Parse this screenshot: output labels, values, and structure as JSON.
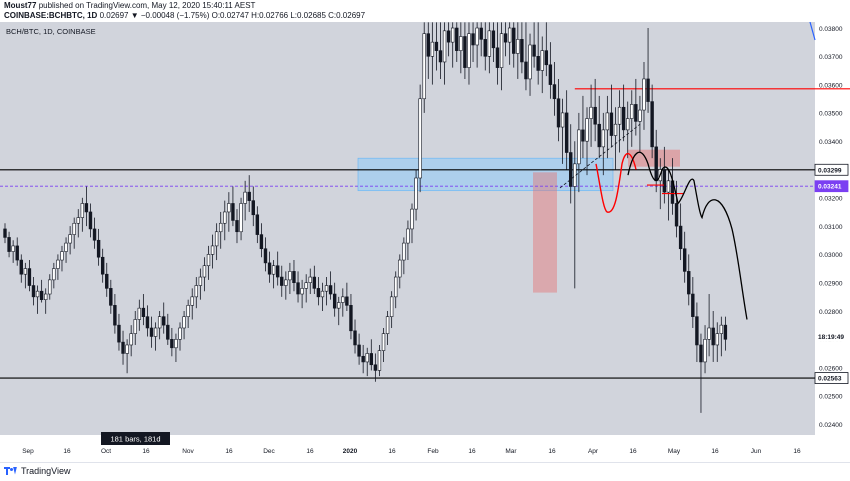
{
  "header": {
    "publisher": "Moust77",
    "published_text": "published on TradingView.com, May 12, 2020 15:40:11 AEST",
    "symbol": "COINBASE:BCHBTC, 1D",
    "change": "0.02697 ▼ −0.00048 (−1.75%)",
    "ohlc": "O:0.02747 H:0.02766 L:0.02685 C:0.02697"
  },
  "chart_data": {
    "type": "candlestick",
    "symbol_label": "BCH/BTC, 1D, COINBASE",
    "y_ticks": [
      "0.03800",
      "0.03700",
      "0.03600",
      "0.03500",
      "0.03400",
      "0.03300",
      "0.03200",
      "0.03100",
      "0.03000",
      "0.02900",
      "0.02800",
      "0.02700",
      "0.02600",
      "0.02500",
      "0.02400"
    ],
    "y_range": [
      0.0234,
      0.0382
    ],
    "x_ticks": [
      "Sep",
      "16",
      "Oct",
      "16",
      "Nov",
      "16",
      "Dec",
      "16",
      "2020",
      "16",
      "Feb",
      "16",
      "Mar",
      "16",
      "Apr",
      "16",
      "May",
      "16",
      "Jun",
      "16"
    ],
    "price_labels": [
      {
        "text": "0.03299",
        "value": 0.03299,
        "kind": "level"
      },
      {
        "text": "0.03241",
        "value": 0.03241,
        "kind": "dashed"
      },
      {
        "text": "18:19:49",
        "value": 0.0271,
        "kind": "timer"
      },
      {
        "text": "0.02563",
        "value": 0.02563,
        "kind": "level"
      }
    ],
    "horizontal_lines": [
      {
        "value": 0.03299,
        "color": "#000000",
        "style": "solid"
      },
      {
        "value": 0.03241,
        "color": "#7b3ff2",
        "style": "dashed"
      },
      {
        "value": 0.02563,
        "color": "#000000",
        "style": "solid"
      },
      {
        "value": 0.03585,
        "color": "#ff0000",
        "style": "solid",
        "from_day": 140,
        "to_day": 249
      }
    ],
    "range_label": "181 bars, 181d",
    "candles_ohlc": [
      [
        0.0309,
        0.0311,
        0.0304,
        0.0306
      ],
      [
        0.0306,
        0.0308,
        0.0299,
        0.0301
      ],
      [
        0.0301,
        0.0305,
        0.0297,
        0.0303
      ],
      [
        0.0303,
        0.0306,
        0.0296,
        0.0298
      ],
      [
        0.0298,
        0.03,
        0.029,
        0.0293
      ],
      [
        0.0293,
        0.0297,
        0.0288,
        0.0295
      ],
      [
        0.0295,
        0.0298,
        0.0287,
        0.0289
      ],
      [
        0.0289,
        0.0292,
        0.0282,
        0.0285
      ],
      [
        0.0285,
        0.0289,
        0.0279,
        0.0287
      ],
      [
        0.0287,
        0.0291,
        0.0283,
        0.0284
      ],
      [
        0.0284,
        0.0288,
        0.0279,
        0.0286
      ],
      [
        0.0286,
        0.0293,
        0.0284,
        0.0291
      ],
      [
        0.0291,
        0.0297,
        0.0288,
        0.0295
      ],
      [
        0.0295,
        0.03,
        0.0291,
        0.0298
      ],
      [
        0.0298,
        0.0303,
        0.0294,
        0.0301
      ],
      [
        0.0301,
        0.0306,
        0.0297,
        0.0304
      ],
      [
        0.0304,
        0.031,
        0.03,
        0.0307
      ],
      [
        0.0307,
        0.0313,
        0.0302,
        0.0311
      ],
      [
        0.0311,
        0.0316,
        0.0306,
        0.0313
      ],
      [
        0.0313,
        0.032,
        0.0308,
        0.0318
      ],
      [
        0.0318,
        0.0324,
        0.031,
        0.0315
      ],
      [
        0.0315,
        0.0318,
        0.0306,
        0.0309
      ],
      [
        0.0309,
        0.0313,
        0.0302,
        0.0305
      ],
      [
        0.0305,
        0.0309,
        0.0296,
        0.0299
      ],
      [
        0.0299,
        0.0302,
        0.029,
        0.0293
      ],
      [
        0.0293,
        0.0297,
        0.0285,
        0.0288
      ],
      [
        0.0288,
        0.0291,
        0.0279,
        0.0282
      ],
      [
        0.0282,
        0.0286,
        0.0272,
        0.0275
      ],
      [
        0.0275,
        0.0279,
        0.0266,
        0.0269
      ],
      [
        0.0269,
        0.0273,
        0.0261,
        0.0265
      ],
      [
        0.0265,
        0.027,
        0.0258,
        0.0268
      ],
      [
        0.0268,
        0.0275,
        0.0264,
        0.0272
      ],
      [
        0.0272,
        0.028,
        0.0268,
        0.0277
      ],
      [
        0.0277,
        0.0284,
        0.0273,
        0.0281
      ],
      [
        0.0281,
        0.0286,
        0.0275,
        0.0278
      ],
      [
        0.0278,
        0.0282,
        0.0271,
        0.0274
      ],
      [
        0.0274,
        0.0278,
        0.0267,
        0.0271
      ],
      [
        0.0271,
        0.0276,
        0.0266,
        0.0274
      ],
      [
        0.0274,
        0.028,
        0.027,
        0.0278
      ],
      [
        0.0278,
        0.0283,
        0.0272,
        0.0275
      ],
      [
        0.0275,
        0.0279,
        0.0268,
        0.027
      ],
      [
        0.027,
        0.0274,
        0.0264,
        0.0267
      ],
      [
        0.0267,
        0.0272,
        0.0262,
        0.027
      ],
      [
        0.027,
        0.0276,
        0.0266,
        0.0274
      ],
      [
        0.0274,
        0.028,
        0.027,
        0.0278
      ],
      [
        0.0278,
        0.0284,
        0.0274,
        0.0282
      ],
      [
        0.0282,
        0.0288,
        0.0277,
        0.0285
      ],
      [
        0.0285,
        0.0292,
        0.0281,
        0.0289
      ],
      [
        0.0289,
        0.0295,
        0.0284,
        0.0292
      ],
      [
        0.0292,
        0.0299,
        0.0287,
        0.0296
      ],
      [
        0.0296,
        0.0303,
        0.0291,
        0.03
      ],
      [
        0.03,
        0.0307,
        0.0295,
        0.0303
      ],
      [
        0.0303,
        0.0311,
        0.0298,
        0.0308
      ],
      [
        0.0308,
        0.0315,
        0.0302,
        0.0311
      ],
      [
        0.0311,
        0.0319,
        0.0305,
        0.0315
      ],
      [
        0.0315,
        0.0322,
        0.0308,
        0.0318
      ],
      [
        0.0318,
        0.0324,
        0.031,
        0.0312
      ],
      [
        0.0312,
        0.0316,
        0.0304,
        0.0308
      ],
      [
        0.0308,
        0.032,
        0.0305,
        0.0318
      ],
      [
        0.0318,
        0.0326,
        0.0312,
        0.0322
      ],
      [
        0.0322,
        0.0328,
        0.0315,
        0.0319
      ],
      [
        0.0319,
        0.0324,
        0.031,
        0.0314
      ],
      [
        0.0314,
        0.0317,
        0.0304,
        0.0307
      ],
      [
        0.0307,
        0.0311,
        0.0299,
        0.0302
      ],
      [
        0.0302,
        0.0306,
        0.0294,
        0.0297
      ],
      [
        0.0297,
        0.0301,
        0.029,
        0.0293
      ],
      [
        0.0293,
        0.0298,
        0.0288,
        0.0296
      ],
      [
        0.0296,
        0.0301,
        0.0289,
        0.0292
      ],
      [
        0.0292,
        0.0296,
        0.0285,
        0.0289
      ],
      [
        0.0289,
        0.0294,
        0.0284,
        0.0291
      ],
      [
        0.0291,
        0.0297,
        0.0286,
        0.0294
      ],
      [
        0.0294,
        0.0298,
        0.0287,
        0.029
      ],
      [
        0.029,
        0.0294,
        0.0283,
        0.0286
      ],
      [
        0.0286,
        0.0291,
        0.0281,
        0.0288
      ],
      [
        0.0288,
        0.0293,
        0.0283,
        0.029
      ],
      [
        0.029,
        0.0295,
        0.0286,
        0.0292
      ],
      [
        0.0292,
        0.0296,
        0.0286,
        0.0288
      ],
      [
        0.0288,
        0.0292,
        0.0282,
        0.0285
      ],
      [
        0.0285,
        0.029,
        0.028,
        0.0287
      ],
      [
        0.0287,
        0.0292,
        0.0282,
        0.0289
      ],
      [
        0.0289,
        0.0294,
        0.0284,
        0.0286
      ],
      [
        0.0286,
        0.029,
        0.0278,
        0.0281
      ],
      [
        0.0281,
        0.0285,
        0.0275,
        0.0283
      ],
      [
        0.0283,
        0.0288,
        0.0278,
        0.0285
      ],
      [
        0.0285,
        0.029,
        0.028,
        0.0282
      ],
      [
        0.0282,
        0.0286,
        0.027,
        0.0273
      ],
      [
        0.0273,
        0.0277,
        0.0265,
        0.0268
      ],
      [
        0.0268,
        0.0272,
        0.0261,
        0.0264
      ],
      [
        0.0264,
        0.0268,
        0.0258,
        0.0262
      ],
      [
        0.0262,
        0.0267,
        0.0257,
        0.0265
      ],
      [
        0.0265,
        0.027,
        0.0259,
        0.0261
      ],
      [
        0.0261,
        0.0265,
        0.0255,
        0.0259
      ],
      [
        0.0259,
        0.0268,
        0.0257,
        0.0266
      ],
      [
        0.0266,
        0.0274,
        0.0262,
        0.0272
      ],
      [
        0.0272,
        0.028,
        0.0268,
        0.0278
      ],
      [
        0.0278,
        0.0287,
        0.0274,
        0.0285
      ],
      [
        0.0285,
        0.0294,
        0.0281,
        0.0292
      ],
      [
        0.0292,
        0.03,
        0.0288,
        0.0298
      ],
      [
        0.0298,
        0.0306,
        0.0293,
        0.0304
      ],
      [
        0.0304,
        0.0312,
        0.0298,
        0.0309
      ],
      [
        0.0309,
        0.0318,
        0.0304,
        0.0316
      ],
      [
        0.0316,
        0.033,
        0.0312,
        0.0327
      ],
      [
        0.0327,
        0.036,
        0.0322,
        0.0355
      ],
      [
        0.0355,
        0.0382,
        0.035,
        0.0378
      ],
      [
        0.0378,
        0.0382,
        0.0362,
        0.037
      ],
      [
        0.037,
        0.0382,
        0.036,
        0.0375
      ],
      [
        0.0375,
        0.0382,
        0.0365,
        0.0372
      ],
      [
        0.0372,
        0.0382,
        0.0362,
        0.0368
      ],
      [
        0.0368,
        0.0382,
        0.036,
        0.0379
      ],
      [
        0.0379,
        0.0382,
        0.037,
        0.0375
      ],
      [
        0.0375,
        0.0382,
        0.0366,
        0.038
      ],
      [
        0.038,
        0.0382,
        0.0368,
        0.0372
      ],
      [
        0.0372,
        0.0382,
        0.0364,
        0.0377
      ],
      [
        0.0377,
        0.0382,
        0.0362,
        0.0366
      ],
      [
        0.0366,
        0.0382,
        0.036,
        0.0378
      ],
      [
        0.0378,
        0.0382,
        0.0368,
        0.0374
      ],
      [
        0.0374,
        0.0382,
        0.0366,
        0.038
      ],
      [
        0.038,
        0.0382,
        0.037,
        0.0376
      ],
      [
        0.0376,
        0.0382,
        0.0365,
        0.037
      ],
      [
        0.037,
        0.0382,
        0.0364,
        0.0379
      ],
      [
        0.0379,
        0.0382,
        0.0368,
        0.0373
      ],
      [
        0.0373,
        0.0382,
        0.036,
        0.0366
      ],
      [
        0.0366,
        0.0382,
        0.0358,
        0.0378
      ],
      [
        0.0378,
        0.0382,
        0.037,
        0.0375
      ],
      [
        0.0375,
        0.0382,
        0.0367,
        0.038
      ],
      [
        0.038,
        0.0382,
        0.0366,
        0.0371
      ],
      [
        0.0371,
        0.0382,
        0.0362,
        0.0376
      ],
      [
        0.0376,
        0.0382,
        0.0364,
        0.0368
      ],
      [
        0.0368,
        0.0382,
        0.0358,
        0.0362
      ],
      [
        0.0362,
        0.0378,
        0.0356,
        0.0374
      ],
      [
        0.0374,
        0.0382,
        0.0366,
        0.037
      ],
      [
        0.037,
        0.0382,
        0.036,
        0.0365
      ],
      [
        0.0365,
        0.0377,
        0.0357,
        0.0372
      ],
      [
        0.0372,
        0.0382,
        0.0363,
        0.0367
      ],
      [
        0.0367,
        0.0375,
        0.0355,
        0.036
      ],
      [
        0.036,
        0.0368,
        0.0349,
        0.0355
      ],
      [
        0.0355,
        0.0362,
        0.034,
        0.0345
      ],
      [
        0.0345,
        0.0355,
        0.0332,
        0.035
      ],
      [
        0.035,
        0.0358,
        0.033,
        0.0336
      ],
      [
        0.0336,
        0.0346,
        0.0318,
        0.0324
      ],
      [
        0.0324,
        0.034,
        0.0288,
        0.0332
      ],
      [
        0.0332,
        0.035,
        0.0322,
        0.0344
      ],
      [
        0.0344,
        0.0356,
        0.0334,
        0.034
      ],
      [
        0.034,
        0.0352,
        0.0328,
        0.0348
      ],
      [
        0.0348,
        0.036,
        0.0338,
        0.0352
      ],
      [
        0.0352,
        0.0362,
        0.034,
        0.0346
      ],
      [
        0.0346,
        0.0356,
        0.0334,
        0.0338
      ],
      [
        0.0338,
        0.035,
        0.0328,
        0.0344
      ],
      [
        0.0344,
        0.0356,
        0.0334,
        0.035
      ],
      [
        0.035,
        0.036,
        0.0338,
        0.0342
      ],
      [
        0.0342,
        0.0352,
        0.033,
        0.0346
      ],
      [
        0.0346,
        0.0358,
        0.0336,
        0.0352
      ],
      [
        0.0352,
        0.036,
        0.034,
        0.0344
      ],
      [
        0.0344,
        0.0354,
        0.0334,
        0.0348
      ],
      [
        0.0348,
        0.0358,
        0.0338,
        0.0353
      ],
      [
        0.0353,
        0.0362,
        0.0342,
        0.0347
      ],
      [
        0.0347,
        0.0356,
        0.0336,
        0.0351
      ],
      [
        0.0351,
        0.0368,
        0.0344,
        0.0362
      ],
      [
        0.0362,
        0.038,
        0.035,
        0.0354
      ],
      [
        0.0354,
        0.036,
        0.0334,
        0.0338
      ],
      [
        0.0338,
        0.0344,
        0.0322,
        0.0326
      ],
      [
        0.0326,
        0.0334,
        0.0316,
        0.033
      ],
      [
        0.033,
        0.0338,
        0.0318,
        0.0322
      ],
      [
        0.0322,
        0.033,
        0.0312,
        0.0326
      ],
      [
        0.0326,
        0.0334,
        0.0314,
        0.0318
      ],
      [
        0.0318,
        0.0326,
        0.0306,
        0.031
      ],
      [
        0.031,
        0.0318,
        0.0298,
        0.0302
      ],
      [
        0.0302,
        0.0308,
        0.029,
        0.0294
      ],
      [
        0.0294,
        0.03,
        0.0282,
        0.0286
      ],
      [
        0.0286,
        0.0292,
        0.0274,
        0.0278
      ],
      [
        0.0278,
        0.0283,
        0.0262,
        0.0268
      ],
      [
        0.0268,
        0.0272,
        0.0244,
        0.0262
      ],
      [
        0.0262,
        0.0275,
        0.0258,
        0.027
      ],
      [
        0.027,
        0.0286,
        0.0264,
        0.0274
      ],
      [
        0.0274,
        0.028,
        0.0262,
        0.0268
      ],
      [
        0.0268,
        0.0276,
        0.0262,
        0.0272
      ],
      [
        0.0272,
        0.0278,
        0.0264,
        0.0275
      ],
      [
        0.0275,
        0.0278,
        0.0266,
        0.027
      ]
    ]
  },
  "footer": {
    "brand": "TradingView"
  }
}
